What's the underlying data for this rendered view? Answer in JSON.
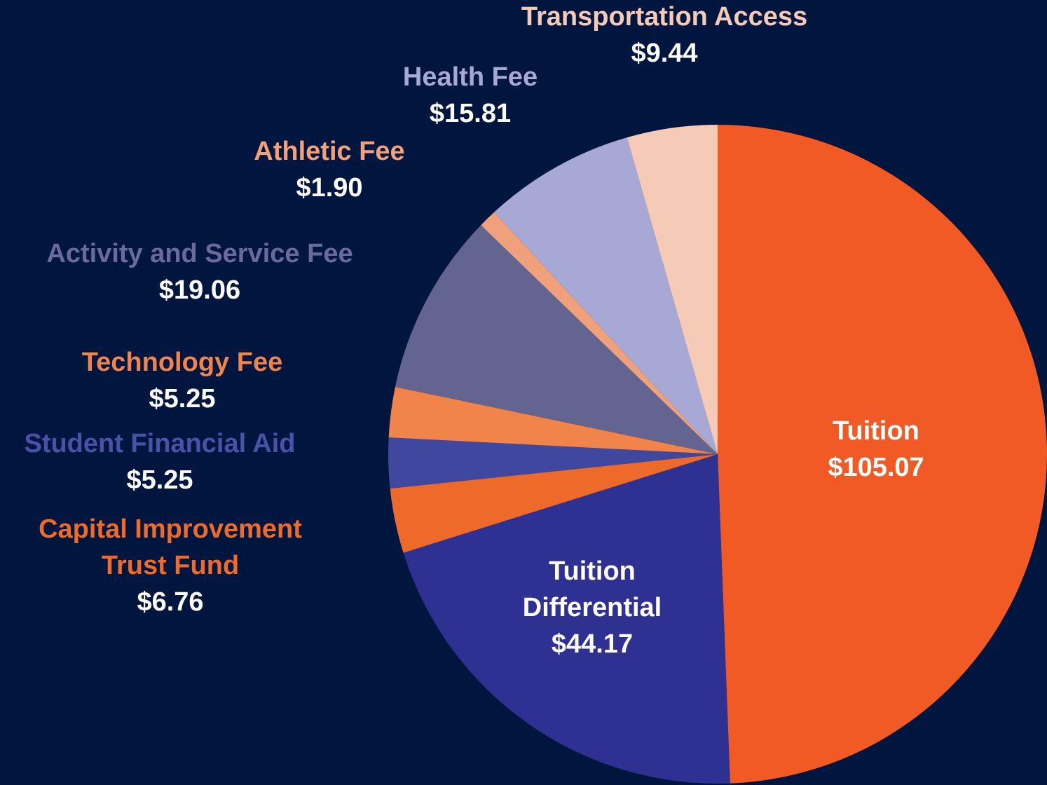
{
  "chart_data": {
    "type": "pie",
    "categories": [
      "Tuition",
      "Tuition Differential",
      "Capital Improvement Trust Fund",
      "Student Financial Aid",
      "Technology Fee",
      "Activity and Service Fee",
      "Athletic Fee",
      "Health Fee",
      "Transportation Access"
    ],
    "values": [
      105.07,
      44.17,
      6.76,
      5.25,
      5.25,
      19.06,
      1.9,
      15.81,
      9.44
    ],
    "value_labels": [
      "$105.07",
      "$44.17",
      "$6.76",
      "$5.25",
      "$5.25",
      "$19.06",
      "$1.90",
      "$15.81",
      "$9.44"
    ],
    "colors": [
      "#f15a24",
      "#2e3192",
      "#ee6a2a",
      "#3f479e",
      "#f0844a",
      "#646491",
      "#f0a07a",
      "#a7a9d4",
      "#f5cbb8"
    ],
    "label_colors": [
      "#ffffff",
      "#ffffff",
      "#f06a28",
      "#4a52a8",
      "#f0844a",
      "#6a6aa0",
      "#f0a07a",
      "#a7a9d4",
      "#f5cbb8"
    ]
  }
}
